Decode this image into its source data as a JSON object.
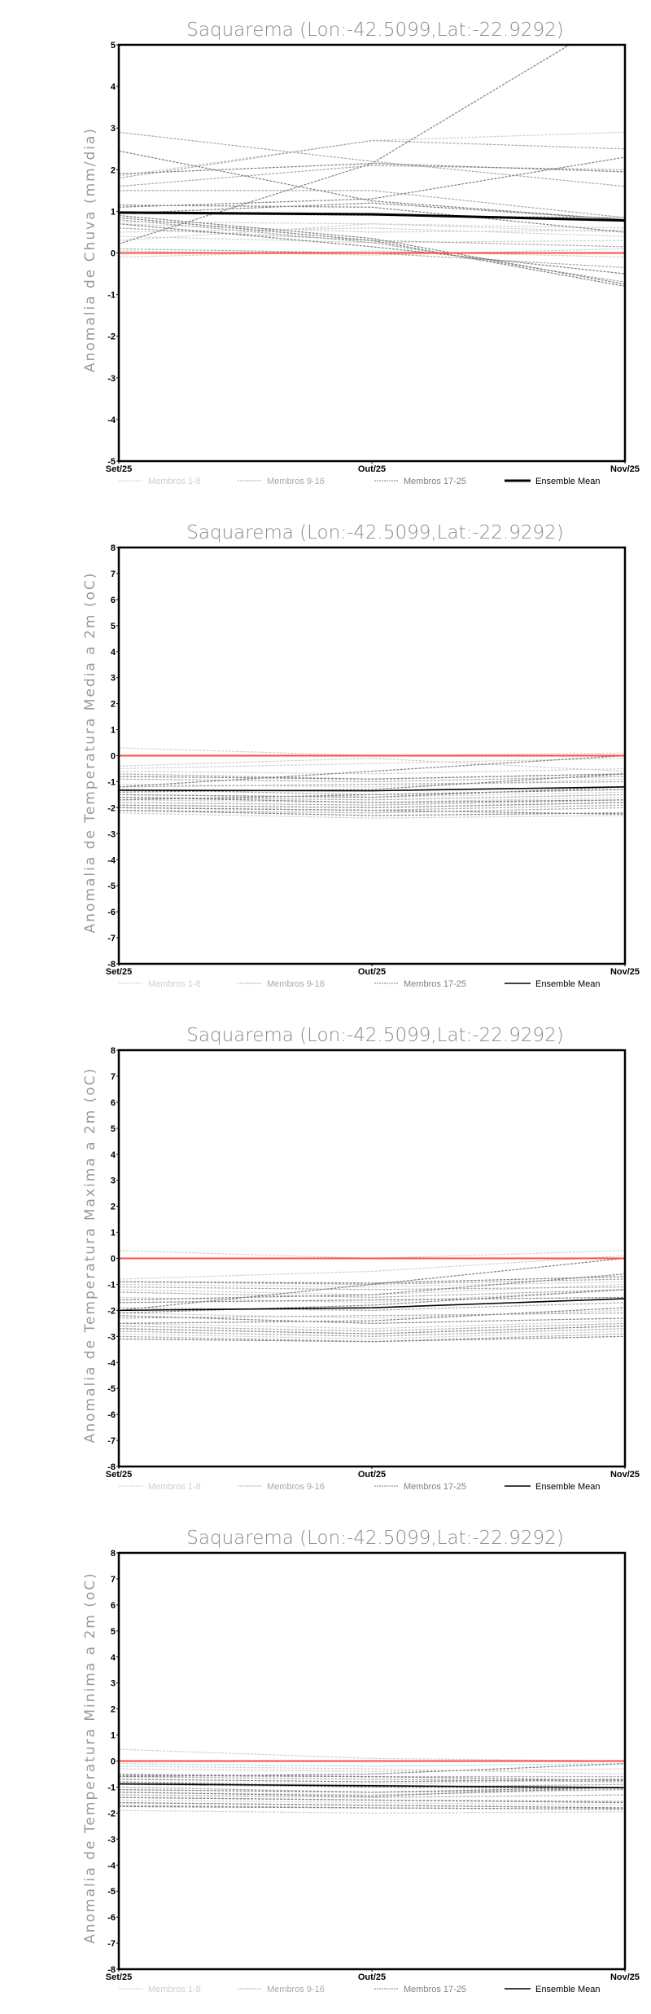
{
  "chart_data": [
    {
      "type": "line",
      "title": "Saquarema (Lon:-42.5099,Lat:-22.9292)",
      "ylabel": "Anomalia de Chuva (mm/dia)",
      "xlabel": "",
      "categories": [
        "Set/25",
        "Out/25",
        "Nov/25"
      ],
      "ylim": [
        -5,
        5
      ],
      "yticks": [
        "-5",
        "-4",
        "-3",
        "-2",
        "-1",
        "0",
        "1",
        "2",
        "3",
        "4",
        "5"
      ],
      "reference_line": 0,
      "mean_width": 3,
      "ensemble_mean": [
        0.97,
        0.93,
        0.78
      ],
      "members": [
        [
          0.05,
          -0.05,
          0.1
        ],
        [
          -0.1,
          0.05,
          -0.1
        ],
        [
          0.3,
          0.7,
          0.5
        ],
        [
          0.5,
          0.6,
          0.4
        ],
        [
          0.4,
          0.25,
          0.3
        ],
        [
          0.75,
          0.7,
          0.6
        ],
        [
          1.85,
          2.7,
          2.9
        ],
        [
          0.7,
          0.5,
          0.55
        ],
        [
          1.8,
          2.7,
          2.5
        ],
        [
          1.5,
          1.5,
          0.85
        ],
        [
          0.6,
          0.3,
          0.15
        ],
        [
          0.1,
          0.0,
          -0.35
        ],
        [
          0.95,
          0.9,
          0.85
        ],
        [
          2.9,
          2.2,
          1.6
        ],
        [
          1.6,
          2.1,
          2.0
        ],
        [
          0.8,
          0.25,
          -0.7
        ],
        [
          0.22,
          2.15,
          5.8
        ],
        [
          2.45,
          1.25,
          0.8
        ],
        [
          1.9,
          2.15,
          1.95
        ],
        [
          1.15,
          1.1,
          0.5
        ],
        [
          1.1,
          1.3,
          2.3
        ],
        [
          0.95,
          1.2,
          0.8
        ],
        [
          0.9,
          0.35,
          -0.75
        ],
        [
          0.85,
          0.3,
          -0.8
        ],
        [
          0.7,
          0.15,
          -0.5
        ]
      ]
    },
    {
      "type": "line",
      "title": "Saquarema (Lon:-42.5099,Lat:-22.9292)",
      "ylabel": "Anomalia de Temperatura Media a 2m (oC)",
      "xlabel": "",
      "categories": [
        "Set/25",
        "Out/25",
        "Nov/25"
      ],
      "ylim": [
        -8,
        8
      ],
      "yticks": [
        "-8",
        "-7",
        "-6",
        "-5",
        "-4",
        "-3",
        "-2",
        "-1",
        "0",
        "1",
        "2",
        "3",
        "4",
        "5",
        "6",
        "7",
        "8"
      ],
      "reference_line": 0,
      "mean_width": 1.6,
      "ensemble_mean": [
        -1.33,
        -1.35,
        -1.2
      ],
      "members": [
        [
          0.3,
          0.0,
          0.1
        ],
        [
          -0.5,
          -0.3,
          -0.1
        ],
        [
          -0.6,
          -0.7,
          -0.5
        ],
        [
          -1.1,
          -1.2,
          -0.9
        ],
        [
          -1.5,
          -1.6,
          -1.4
        ],
        [
          -2.2,
          -2.4,
          -2.3
        ],
        [
          -0.4,
          -0.1,
          -0.6
        ],
        [
          -1.7,
          -1.8,
          -1.6
        ],
        [
          -0.7,
          -0.9,
          -0.7
        ],
        [
          -1.2,
          -1.1,
          -1.0
        ],
        [
          -1.6,
          -1.7,
          -1.5
        ],
        [
          -2.0,
          -2.1,
          -1.9
        ],
        [
          -1.3,
          -1.5,
          -1.3
        ],
        [
          -0.9,
          -1.0,
          -0.8
        ],
        [
          -1.8,
          -1.9,
          -1.7
        ],
        [
          -2.1,
          -2.2,
          -2.0
        ],
        [
          -1.2,
          -0.6,
          0.0
        ],
        [
          -0.8,
          -0.9,
          -0.7
        ],
        [
          -1.4,
          -1.3,
          -0.7
        ],
        [
          -1.5,
          -1.6,
          -1.2
        ],
        [
          -1.9,
          -2.0,
          -1.8
        ],
        [
          -2.1,
          -2.3,
          -2.2
        ],
        [
          -1.6,
          -1.8,
          -1.7
        ],
        [
          -2.0,
          -2.1,
          -2.25
        ],
        [
          -1.7,
          -1.5,
          -1.3
        ]
      ]
    },
    {
      "type": "line",
      "title": "Saquarema (Lon:-42.5099,Lat:-22.9292)",
      "ylabel": "Anomalia de Temperatura Maxima a 2m (oC)",
      "xlabel": "",
      "categories": [
        "Set/25",
        "Out/25",
        "Nov/25"
      ],
      "ylim": [
        -8,
        8
      ],
      "yticks": [
        "-8",
        "-7",
        "-6",
        "-5",
        "-4",
        "-3",
        "-2",
        "-1",
        "0",
        "1",
        "2",
        "3",
        "4",
        "5",
        "6",
        "7",
        "8"
      ],
      "reference_line": 0,
      "mean_width": 1.6,
      "ensemble_mean": [
        -2.0,
        -1.9,
        -1.55
      ],
      "members": [
        [
          0.3,
          0.0,
          0.3
        ],
        [
          -0.8,
          -0.5,
          0.1
        ],
        [
          -1.0,
          -1.1,
          -0.9
        ],
        [
          -1.5,
          -1.7,
          -1.2
        ],
        [
          -2.1,
          -2.3,
          -2.0
        ],
        [
          -2.9,
          -3.1,
          -2.8
        ],
        [
          -1.2,
          -1.4,
          -1.0
        ],
        [
          -2.5,
          -2.7,
          -2.4
        ],
        [
          -0.9,
          -1.0,
          -0.8
        ],
        [
          -1.3,
          -1.5,
          -1.2
        ],
        [
          -1.9,
          -2.0,
          -1.7
        ],
        [
          -2.6,
          -2.8,
          -2.5
        ],
        [
          -2.3,
          -2.2,
          -2.1
        ],
        [
          -1.1,
          -1.2,
          -1.1
        ],
        [
          -2.8,
          -3.0,
          -2.7
        ],
        [
          -3.0,
          -3.2,
          -2.9
        ],
        [
          -2.0,
          -1.0,
          0.0
        ],
        [
          -0.9,
          -0.95,
          -0.7
        ],
        [
          -1.6,
          -1.4,
          -0.6
        ],
        [
          -2.1,
          -1.8,
          -1.2
        ],
        [
          -2.5,
          -2.4,
          -1.9
        ],
        [
          -2.7,
          -2.9,
          -2.6
        ],
        [
          -2.2,
          -2.5,
          -2.3
        ],
        [
          -3.1,
          -3.2,
          -3.0
        ],
        [
          -1.7,
          -1.6,
          -1.5
        ]
      ]
    },
    {
      "type": "line",
      "title": "Saquarema (Lon:-42.5099,Lat:-22.9292)",
      "ylabel": "Anomalia de Temperatura Minima a 2m (oC)",
      "xlabel": "",
      "categories": [
        "Set/25",
        "Out/25",
        "Nov/25"
      ],
      "ylim": [
        -8,
        8
      ],
      "yticks": [
        "-8",
        "-7",
        "-6",
        "-5",
        "-4",
        "-3",
        "-2",
        "-1",
        "0",
        "1",
        "2",
        "3",
        "4",
        "5",
        "6",
        "7",
        "8"
      ],
      "reference_line": 0,
      "mean_width": 1.6,
      "ensemble_mean": [
        -0.88,
        -0.95,
        -1.02
      ],
      "members": [
        [
          0.45,
          0.1,
          0.0
        ],
        [
          -0.1,
          -0.2,
          -0.1
        ],
        [
          -0.3,
          -0.4,
          -0.3
        ],
        [
          -0.8,
          -0.9,
          -0.7
        ],
        [
          -1.2,
          -1.3,
          -1.1
        ],
        [
          -1.9,
          -2.0,
          -1.95
        ],
        [
          -0.2,
          -0.3,
          -0.5
        ],
        [
          -1.5,
          -1.6,
          -1.7
        ],
        [
          -0.5,
          -0.6,
          -0.6
        ],
        [
          -0.9,
          -1.0,
          -0.9
        ],
        [
          -1.3,
          -1.4,
          -1.3
        ],
        [
          -1.7,
          -1.8,
          -1.85
        ],
        [
          -1.0,
          -1.2,
          -1.1
        ],
        [
          -0.6,
          -0.7,
          -0.8
        ],
        [
          -1.6,
          -1.7,
          -1.8
        ],
        [
          -1.4,
          -1.5,
          -1.55
        ],
        [
          -0.6,
          -0.5,
          -0.1
        ],
        [
          -0.7,
          -0.8,
          -0.7
        ],
        [
          -0.8,
          -1.0,
          -1.05
        ],
        [
          -1.1,
          -1.2,
          -1.0
        ],
        [
          -1.4,
          -1.5,
          -1.6
        ],
        [
          -1.6,
          -1.7,
          -1.8
        ],
        [
          -1.2,
          -1.35,
          -1.0
        ],
        [
          -1.75,
          -1.8,
          -1.85
        ],
        [
          -0.55,
          -0.6,
          -0.75
        ]
      ]
    }
  ],
  "legend": {
    "items": [
      {
        "label": "Membros 1-8",
        "color": "#cfcfcf"
      },
      {
        "label": "Membros 9-16",
        "color": "#a8a8a8"
      },
      {
        "label": "Membros 17-25",
        "color": "#808080"
      },
      {
        "label": "Ensemble Mean",
        "color": "#000000"
      }
    ]
  },
  "colors": {
    "reference": "#ff4a4a",
    "axis": "#000000",
    "title": "#8a8a8a"
  }
}
